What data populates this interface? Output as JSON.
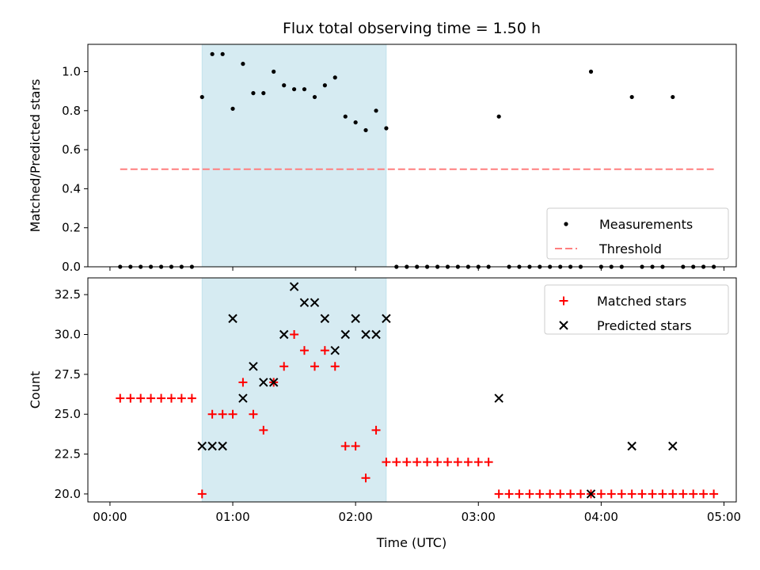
{
  "chart_data": {
    "type": "scatter",
    "title": "Flux total observing time = 1.50 h",
    "xlabel": "Time (UTC)",
    "x_unit": "hours",
    "xlim": [
      -0.18,
      5.1
    ],
    "x_ticks": [
      0,
      1,
      2,
      3,
      4,
      5
    ],
    "x_tick_labels": [
      "00:00",
      "01:00",
      "02:00",
      "03:00",
      "04:00",
      "05:00"
    ],
    "highlight_span": {
      "x": [
        0.75,
        2.25
      ],
      "color": "#add8e6"
    },
    "panels": [
      {
        "id": "ratio",
        "ylabel": "Matched/Predicted stars",
        "ylim": [
          0,
          1.14
        ],
        "y_ticks": [
          0.0,
          0.2,
          0.4,
          0.6,
          0.8,
          1.0
        ],
        "y_tick_labels": [
          "0.0",
          "0.2",
          "0.4",
          "0.6",
          "0.8",
          "1.0"
        ],
        "legend_position": "lower-right",
        "series": [
          {
            "name": "Measurements",
            "marker": "dot",
            "color": "#000000",
            "x": [
              0.083,
              0.167,
              0.25,
              0.333,
              0.417,
              0.5,
              0.583,
              0.667,
              0.75,
              0.833,
              0.917,
              1.0,
              1.083,
              1.167,
              1.25,
              1.333,
              1.417,
              1.5,
              1.583,
              1.667,
              1.75,
              1.833,
              1.917,
              2.0,
              2.083,
              2.167,
              2.25,
              2.333,
              2.417,
              2.5,
              2.583,
              2.667,
              2.75,
              2.833,
              2.917,
              3.0,
              3.083,
              3.167,
              3.25,
              3.333,
              3.417,
              3.5,
              3.583,
              3.667,
              3.75,
              3.833,
              3.917,
              4.0,
              4.083,
              4.167,
              4.25,
              4.333,
              4.417,
              4.5,
              4.583,
              4.667,
              4.75,
              4.833,
              4.917
            ],
            "y": [
              0,
              0,
              0,
              0,
              0,
              0,
              0,
              0,
              0.87,
              1.09,
              1.09,
              0.81,
              1.04,
              0.89,
              0.89,
              1.0,
              0.93,
              0.91,
              0.91,
              0.87,
              0.93,
              0.97,
              0.77,
              0.74,
              0.7,
              0.8,
              0.71,
              0,
              0,
              0,
              0,
              0,
              0,
              0,
              0,
              0,
              0,
              0.77,
              0,
              0,
              0,
              0,
              0,
              0,
              0,
              0,
              1.0,
              0,
              0,
              0,
              0.87,
              0,
              0,
              0,
              0.87,
              0,
              0,
              0,
              0
            ]
          },
          {
            "name": "Threshold",
            "marker": "dashed-line",
            "color": "#ff7f7f",
            "x": [
              0.083,
              4.917
            ],
            "y": [
              0.5,
              0.5
            ]
          }
        ]
      },
      {
        "id": "count",
        "ylabel": "Count",
        "ylim": [
          19.5,
          33.55
        ],
        "y_ticks": [
          20.0,
          22.5,
          25.0,
          27.5,
          30.0,
          32.5
        ],
        "y_tick_labels": [
          "20.0",
          "22.5",
          "25.0",
          "27.5",
          "30.0",
          "32.5"
        ],
        "legend_position": "upper-right",
        "series": [
          {
            "name": "Matched stars",
            "marker": "plus",
            "color": "#ff0000",
            "x": [
              0.083,
              0.167,
              0.25,
              0.333,
              0.417,
              0.5,
              0.583,
              0.667,
              0.75,
              0.833,
              0.917,
              1.0,
              1.083,
              1.167,
              1.25,
              1.333,
              1.417,
              1.5,
              1.583,
              1.667,
              1.75,
              1.833,
              1.917,
              2.0,
              2.083,
              2.167,
              2.25,
              2.333,
              2.417,
              2.5,
              2.583,
              2.667,
              2.75,
              2.833,
              2.917,
              3.0,
              3.083,
              3.167,
              3.25,
              3.333,
              3.417,
              3.5,
              3.583,
              3.667,
              3.75,
              3.833,
              3.917,
              4.0,
              4.083,
              4.167,
              4.25,
              4.333,
              4.417,
              4.5,
              4.583,
              4.667,
              4.75,
              4.833,
              4.917
            ],
            "y": [
              26,
              26,
              26,
              26,
              26,
              26,
              26,
              26,
              20,
              25,
              25,
              25,
              27,
              25,
              24,
              27,
              28,
              30,
              29,
              28,
              29,
              28,
              23,
              23,
              21,
              24,
              22,
              22,
              22,
              22,
              22,
              22,
              22,
              22,
              22,
              22,
              22,
              20,
              20,
              20,
              20,
              20,
              20,
              20,
              20,
              20,
              20,
              20,
              20,
              20,
              20,
              20,
              20,
              20,
              20,
              20,
              20,
              20,
              20
            ]
          },
          {
            "name": "Predicted stars",
            "marker": "x",
            "color": "#000000",
            "x": [
              0.75,
              0.833,
              0.917,
              1.0,
              1.083,
              1.167,
              1.25,
              1.333,
              1.417,
              1.5,
              1.583,
              1.667,
              1.75,
              1.833,
              1.917,
              2.0,
              2.083,
              2.167,
              2.25,
              3.167,
              3.917,
              4.25,
              4.583
            ],
            "y": [
              23,
              23,
              23,
              31,
              26,
              28,
              27,
              27,
              30,
              33,
              32,
              32,
              31,
              29,
              30,
              31,
              30,
              30,
              31,
              26,
              20,
              23,
              23
            ]
          }
        ]
      }
    ]
  }
}
